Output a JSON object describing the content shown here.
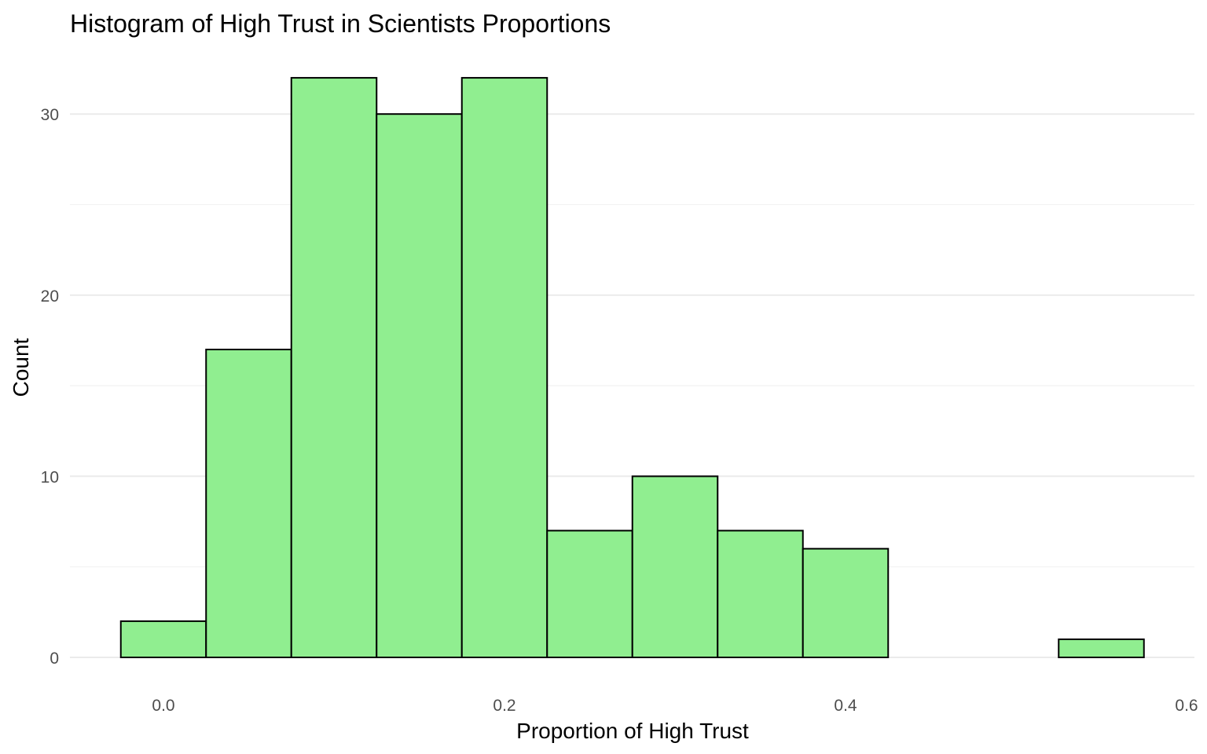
{
  "chart_data": {
    "type": "bar",
    "title": "Histogram of High Trust in Scientists Proportions",
    "xlabel": "Proportion of High Trust",
    "ylabel": "Count",
    "bin_width": 0.05,
    "bins": [
      {
        "start": -0.025,
        "end": 0.025,
        "count": 2
      },
      {
        "start": 0.025,
        "end": 0.075,
        "count": 17
      },
      {
        "start": 0.075,
        "end": 0.125,
        "count": 32
      },
      {
        "start": 0.125,
        "end": 0.175,
        "count": 30
      },
      {
        "start": 0.175,
        "end": 0.225,
        "count": 32
      },
      {
        "start": 0.225,
        "end": 0.275,
        "count": 7
      },
      {
        "start": 0.275,
        "end": 0.325,
        "count": 10
      },
      {
        "start": 0.325,
        "end": 0.375,
        "count": 7
      },
      {
        "start": 0.375,
        "end": 0.425,
        "count": 6
      },
      {
        "start": 0.425,
        "end": 0.475,
        "count": 0
      },
      {
        "start": 0.475,
        "end": 0.525,
        "count": 0
      },
      {
        "start": 0.525,
        "end": 0.575,
        "count": 1
      }
    ],
    "xlim": [
      -0.025,
      0.6
    ],
    "ylim": [
      0,
      32
    ],
    "x_ticks": [
      0.0,
      0.2,
      0.4,
      0.6
    ],
    "x_tick_labels": [
      "0.0",
      "0.2",
      "0.4",
      "0.6"
    ],
    "y_ticks": [
      0,
      10,
      20,
      30
    ],
    "y_tick_labels": [
      "0",
      "10",
      "20",
      "30"
    ],
    "grid": true,
    "bar_fill": "#90ee90",
    "bar_stroke": "#000000"
  }
}
